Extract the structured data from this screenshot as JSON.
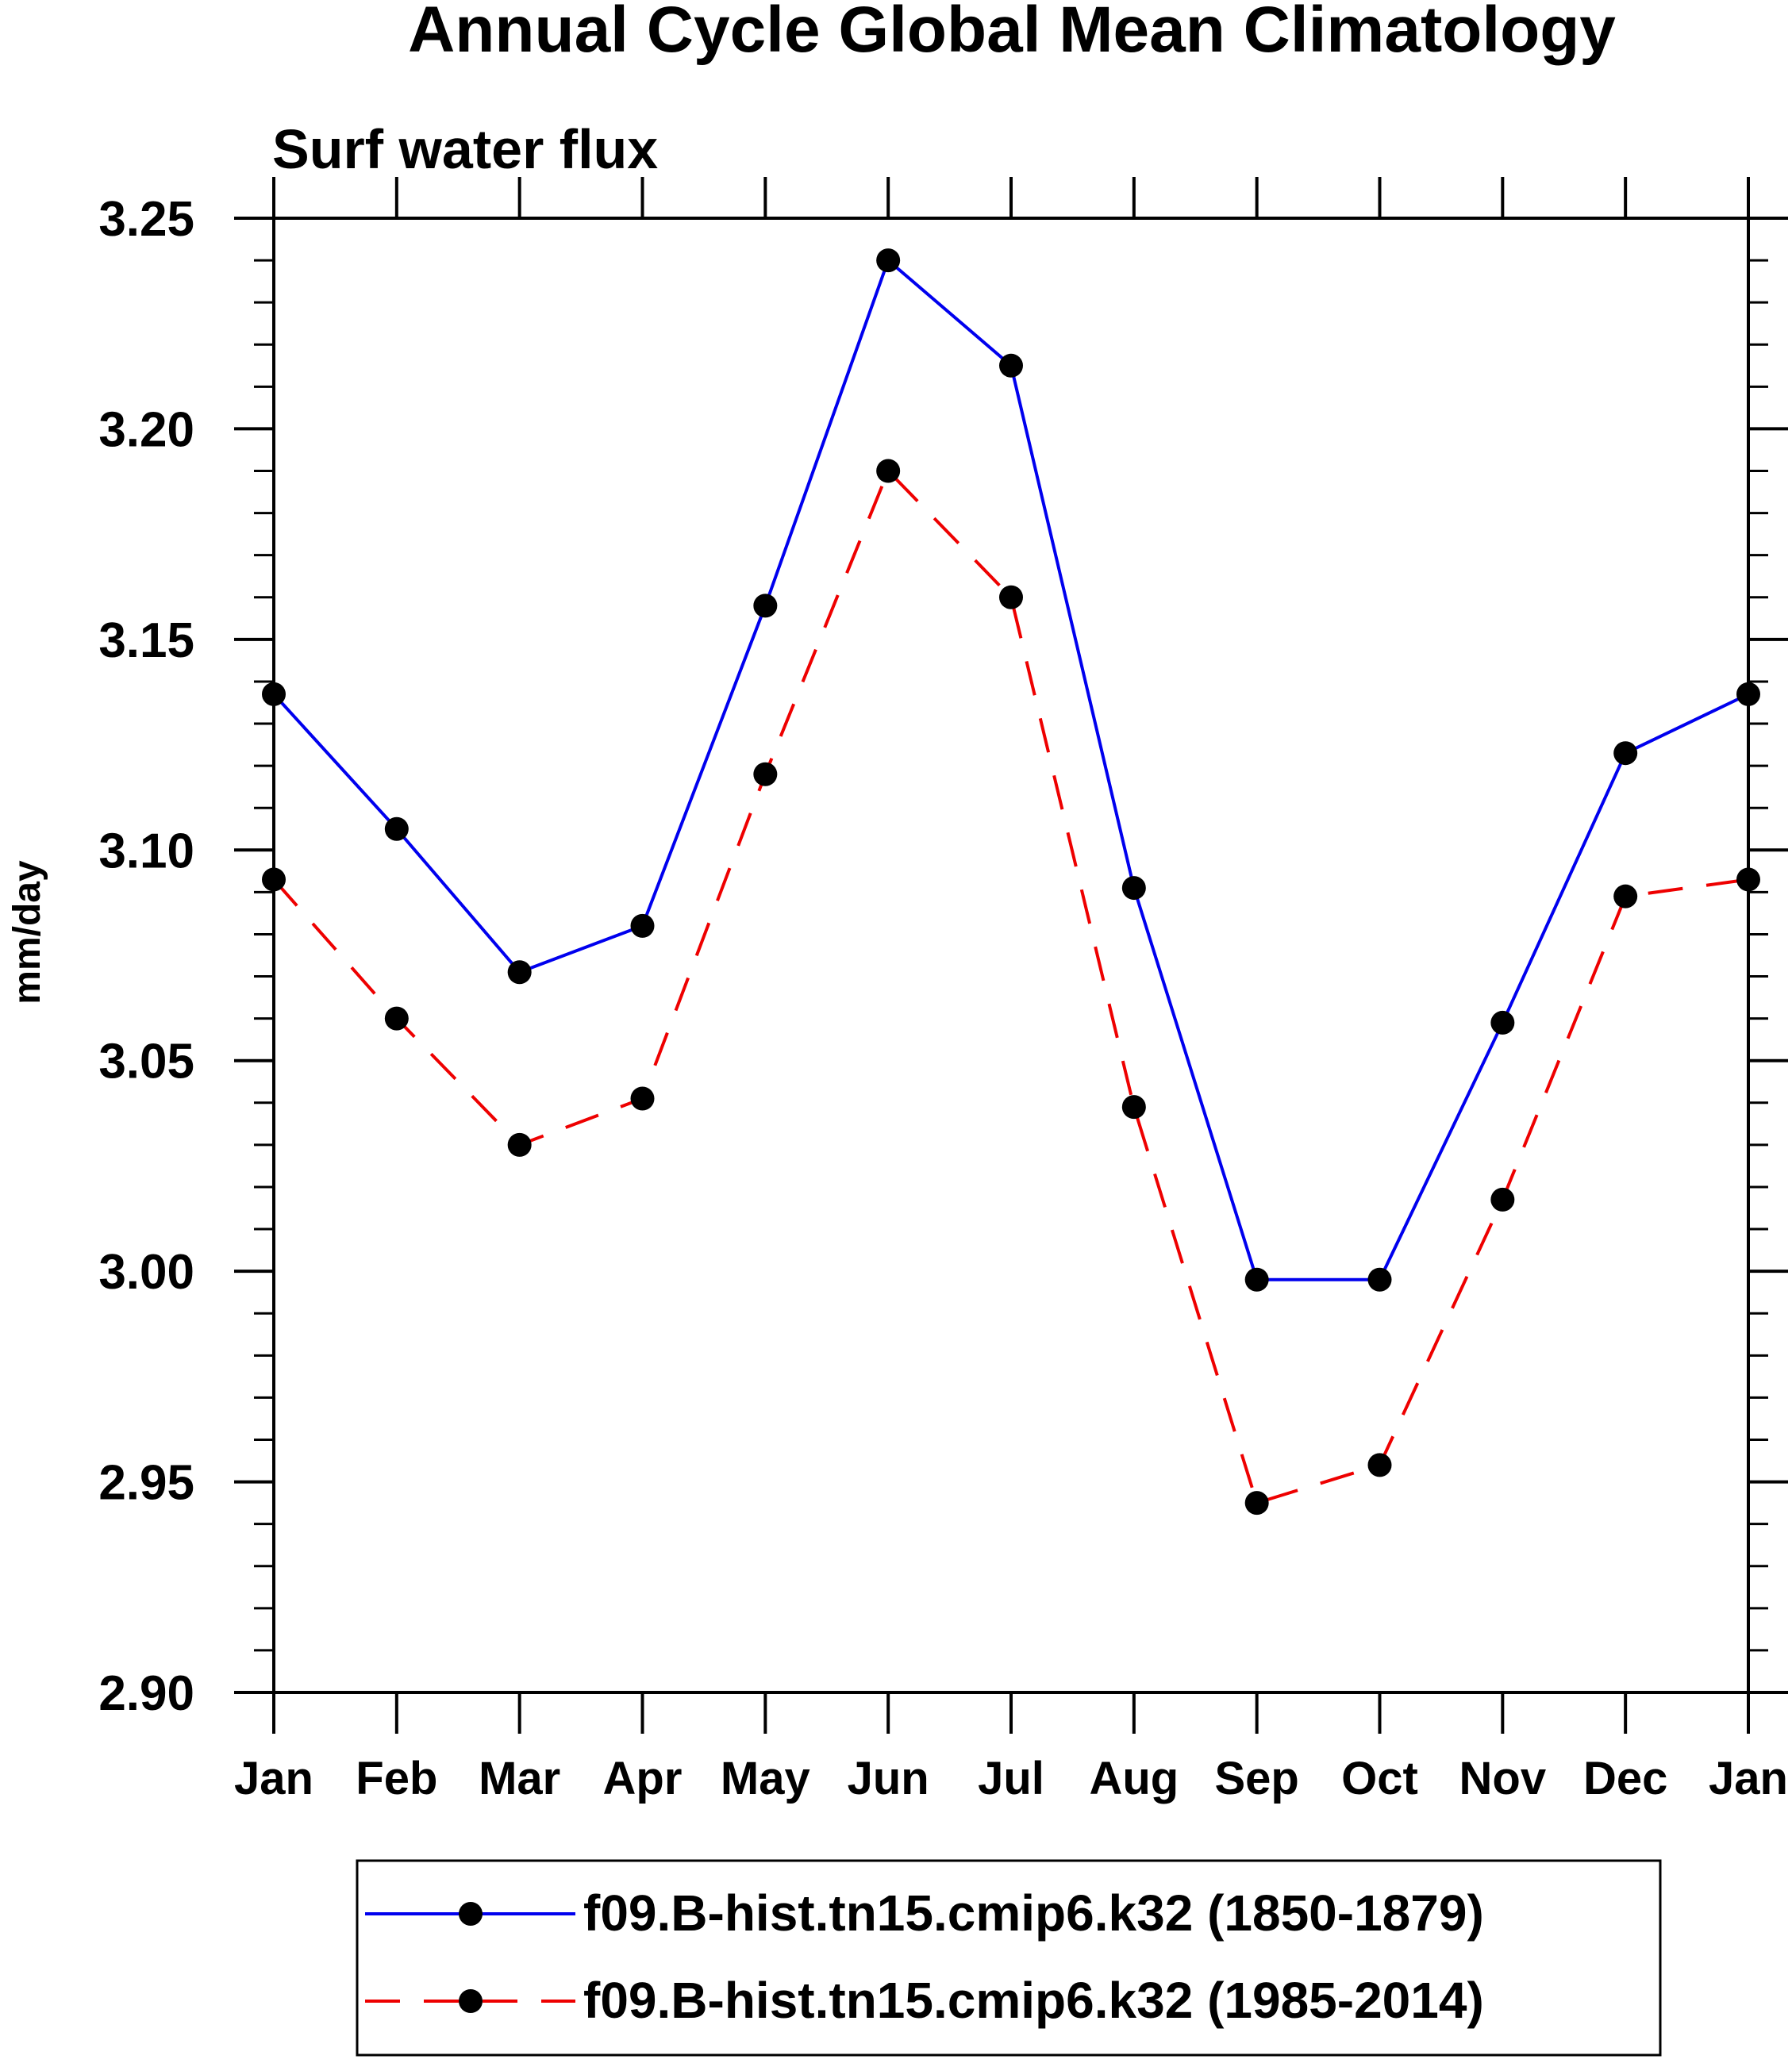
{
  "chart_data": {
    "type": "line",
    "title": "Annual Cycle Global Mean Climatology",
    "subtitle": "Surf water flux",
    "xlabel": "",
    "ylabel": "mm/day",
    "categories": [
      "Jan",
      "Feb",
      "Mar",
      "Apr",
      "May",
      "Jun",
      "Jul",
      "Aug",
      "Sep",
      "Oct",
      "Nov",
      "Dec",
      "Jan"
    ],
    "ylim": [
      2.9,
      3.25
    ],
    "yticks": [
      "2.90",
      "2.95",
      "3.00",
      "3.05",
      "3.10",
      "3.15",
      "3.20",
      "3.25"
    ],
    "grid": false,
    "legend_position": "bottom",
    "series": [
      {
        "name": "f09.B-hist.tn15.cmip6.k32 (1850-1879)",
        "color": "#0000ee",
        "line_style": "solid",
        "marker": "filled-circle",
        "values": [
          3.137,
          3.105,
          3.071,
          3.082,
          3.158,
          3.24,
          3.215,
          3.091,
          2.998,
          2.998,
          3.059,
          3.123,
          3.137
        ]
      },
      {
        "name": "f09.B-hist.tn15.cmip6.k32 (1985-2014)",
        "color": "#ee0000",
        "line_style": "dashed",
        "marker": "filled-circle",
        "values": [
          3.093,
          3.06,
          3.03,
          3.041,
          3.118,
          3.19,
          3.16,
          3.039,
          2.945,
          2.954,
          3.017,
          3.089,
          3.093
        ]
      }
    ]
  }
}
